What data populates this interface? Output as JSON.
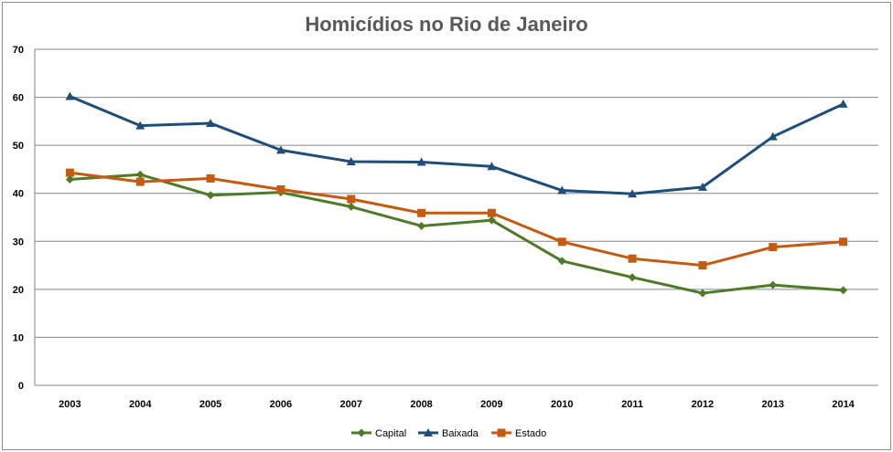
{
  "chart_data": {
    "type": "line",
    "title": "Homicídios no Rio de Janeiro",
    "xlabel": "",
    "ylabel": "",
    "categories": [
      "2003",
      "2004",
      "2005",
      "2006",
      "2007",
      "2008",
      "2009",
      "2010",
      "2011",
      "2012",
      "2013",
      "2014"
    ],
    "ylim": [
      0,
      70
    ],
    "yticks": [
      0,
      10,
      20,
      30,
      40,
      50,
      60,
      70
    ],
    "grid": true,
    "legend_position": "bottom",
    "series": [
      {
        "name": "Capital",
        "color": "#4f7a28",
        "marker": "diamond",
        "values": [
          42.9,
          43.9,
          39.6,
          40.2,
          37.2,
          33.2,
          34.4,
          25.9,
          22.5,
          19.2,
          20.9,
          19.8
        ]
      },
      {
        "name": "Baixada",
        "color": "#1f4e79",
        "marker": "triangle",
        "values": [
          60.2,
          54.1,
          54.6,
          49.0,
          46.6,
          46.5,
          45.6,
          40.6,
          39.9,
          41.3,
          51.8,
          58.6
        ]
      },
      {
        "name": "Estado",
        "color": "#c55a11",
        "marker": "square",
        "values": [
          44.3,
          42.4,
          43.1,
          40.8,
          38.8,
          35.9,
          35.9,
          29.9,
          26.4,
          25.0,
          28.8,
          29.9
        ]
      }
    ]
  }
}
